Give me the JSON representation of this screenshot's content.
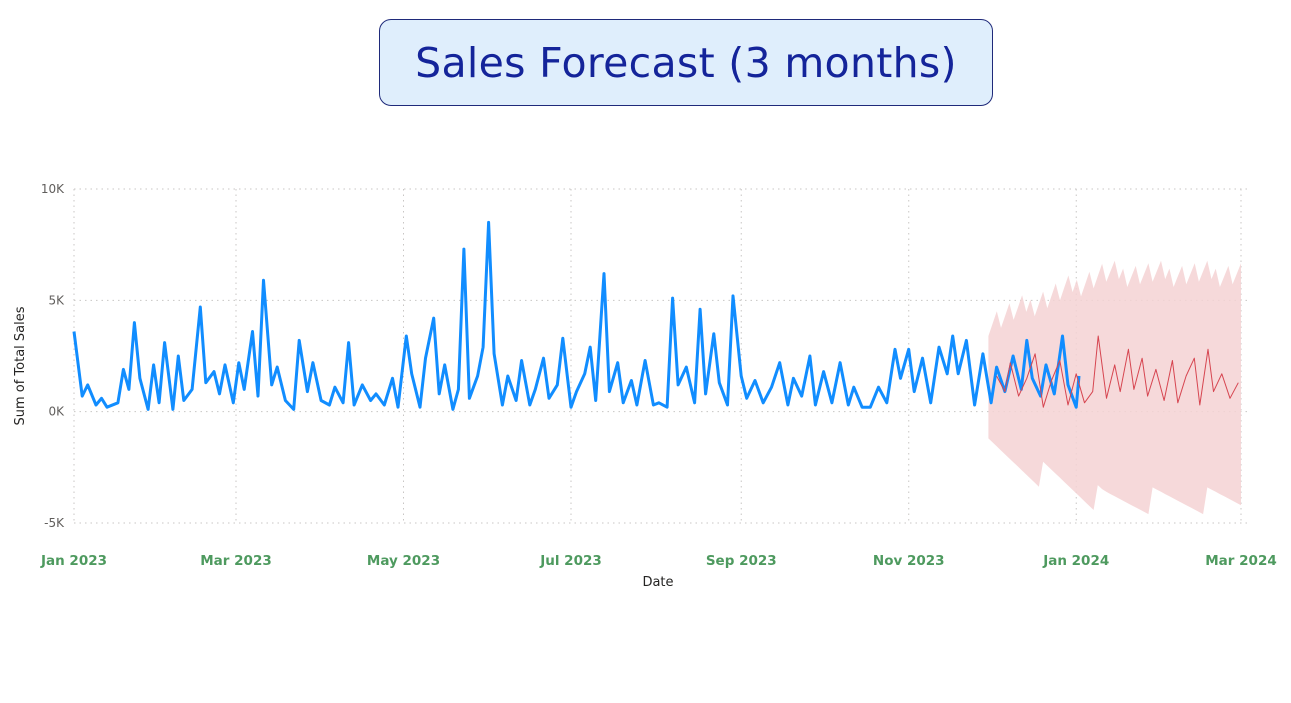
{
  "title": "Sales Forecast (3 months)",
  "colors": {
    "actual": "#118dff",
    "forecast": "#d64550",
    "band": "#f5d2d4",
    "x_tick": "#4e9a5f",
    "grid": "#c8c6c4"
  },
  "chart_data": {
    "type": "line",
    "xlabel": "Date",
    "ylabel": "Sum of Total Sales",
    "ylim": [
      -5000,
      10000
    ],
    "xlim": [
      "2023-01-01",
      "2024-03-01"
    ],
    "y_ticks": [
      {
        "value": 10000,
        "label": "10K"
      },
      {
        "value": 5000,
        "label": "5K"
      },
      {
        "value": 0,
        "label": "0K"
      },
      {
        "value": -5000,
        "label": "-5K"
      }
    ],
    "x_ticks": [
      {
        "date": "2023-01-01",
        "label": "Jan 2023"
      },
      {
        "date": "2023-03-01",
        "label": "Mar 2023"
      },
      {
        "date": "2023-05-01",
        "label": "May 2023"
      },
      {
        "date": "2023-07-01",
        "label": "Jul 2023"
      },
      {
        "date": "2023-09-01",
        "label": "Sep 2023"
      },
      {
        "date": "2023-11-01",
        "label": "Nov 2023"
      },
      {
        "date": "2024-01-01",
        "label": "Jan 2024"
      },
      {
        "date": "2024-03-01",
        "label": "Mar 2024"
      }
    ],
    "grid": true,
    "series": [
      {
        "kind": "actual",
        "points": [
          [
            "2023-01-01",
            3600
          ],
          [
            "2023-01-04",
            700
          ],
          [
            "2023-01-06",
            1200
          ],
          [
            "2023-01-09",
            300
          ],
          [
            "2023-01-11",
            600
          ],
          [
            "2023-01-13",
            200
          ],
          [
            "2023-01-17",
            400
          ],
          [
            "2023-01-19",
            1900
          ],
          [
            "2023-01-21",
            1000
          ],
          [
            "2023-01-23",
            4000
          ],
          [
            "2023-01-25",
            1500
          ],
          [
            "2023-01-28",
            100
          ],
          [
            "2023-01-30",
            2100
          ],
          [
            "2023-02-01",
            400
          ],
          [
            "2023-02-03",
            3100
          ],
          [
            "2023-02-06",
            100
          ],
          [
            "2023-02-08",
            2500
          ],
          [
            "2023-02-10",
            500
          ],
          [
            "2023-02-13",
            1000
          ],
          [
            "2023-02-16",
            4700
          ],
          [
            "2023-02-18",
            1300
          ],
          [
            "2023-02-21",
            1800
          ],
          [
            "2023-02-23",
            800
          ],
          [
            "2023-02-25",
            2100
          ],
          [
            "2023-02-28",
            400
          ],
          [
            "2023-03-02",
            2200
          ],
          [
            "2023-03-04",
            1000
          ],
          [
            "2023-03-07",
            3600
          ],
          [
            "2023-03-09",
            700
          ],
          [
            "2023-03-11",
            5900
          ],
          [
            "2023-03-14",
            1200
          ],
          [
            "2023-03-16",
            2000
          ],
          [
            "2023-03-19",
            500
          ],
          [
            "2023-03-22",
            100
          ],
          [
            "2023-03-24",
            3200
          ],
          [
            "2023-03-27",
            900
          ],
          [
            "2023-03-29",
            2200
          ],
          [
            "2023-04-01",
            500
          ],
          [
            "2023-04-04",
            300
          ],
          [
            "2023-04-06",
            1100
          ],
          [
            "2023-04-09",
            400
          ],
          [
            "2023-04-11",
            3100
          ],
          [
            "2023-04-13",
            300
          ],
          [
            "2023-04-16",
            1200
          ],
          [
            "2023-04-19",
            500
          ],
          [
            "2023-04-21",
            800
          ],
          [
            "2023-04-24",
            300
          ],
          [
            "2023-04-27",
            1500
          ],
          [
            "2023-04-29",
            200
          ],
          [
            "2023-05-02",
            3400
          ],
          [
            "2023-05-04",
            1700
          ],
          [
            "2023-05-07",
            200
          ],
          [
            "2023-05-09",
            2400
          ],
          [
            "2023-05-12",
            4200
          ],
          [
            "2023-05-14",
            800
          ],
          [
            "2023-05-16",
            2100
          ],
          [
            "2023-05-19",
            100
          ],
          [
            "2023-05-21",
            1000
          ],
          [
            "2023-05-23",
            7300
          ],
          [
            "2023-05-25",
            600
          ],
          [
            "2023-05-28",
            1600
          ],
          [
            "2023-05-30",
            2900
          ],
          [
            "2023-06-01",
            8500
          ],
          [
            "2023-06-03",
            2600
          ],
          [
            "2023-06-06",
            300
          ],
          [
            "2023-06-08",
            1600
          ],
          [
            "2023-06-11",
            500
          ],
          [
            "2023-06-13",
            2300
          ],
          [
            "2023-06-16",
            300
          ],
          [
            "2023-06-18",
            1000
          ],
          [
            "2023-06-21",
            2400
          ],
          [
            "2023-06-23",
            600
          ],
          [
            "2023-06-26",
            1200
          ],
          [
            "2023-06-28",
            3300
          ],
          [
            "2023-07-01",
            200
          ],
          [
            "2023-07-03",
            900
          ],
          [
            "2023-07-06",
            1700
          ],
          [
            "2023-07-08",
            2900
          ],
          [
            "2023-07-10",
            500
          ],
          [
            "2023-07-13",
            6200
          ],
          [
            "2023-07-15",
            900
          ],
          [
            "2023-07-18",
            2200
          ],
          [
            "2023-07-20",
            400
          ],
          [
            "2023-07-23",
            1400
          ],
          [
            "2023-07-25",
            300
          ],
          [
            "2023-07-28",
            2300
          ],
          [
            "2023-07-31",
            300
          ],
          [
            "2023-08-02",
            400
          ],
          [
            "2023-08-05",
            200
          ],
          [
            "2023-08-07",
            5100
          ],
          [
            "2023-08-09",
            1200
          ],
          [
            "2023-08-12",
            2000
          ],
          [
            "2023-08-15",
            400
          ],
          [
            "2023-08-17",
            4600
          ],
          [
            "2023-08-19",
            800
          ],
          [
            "2023-08-22",
            3500
          ],
          [
            "2023-08-24",
            1300
          ],
          [
            "2023-08-27",
            300
          ],
          [
            "2023-08-29",
            5200
          ],
          [
            "2023-09-01",
            1600
          ],
          [
            "2023-09-03",
            600
          ],
          [
            "2023-09-06",
            1400
          ],
          [
            "2023-09-09",
            400
          ],
          [
            "2023-09-12",
            1100
          ],
          [
            "2023-09-15",
            2200
          ],
          [
            "2023-09-18",
            300
          ],
          [
            "2023-09-20",
            1500
          ],
          [
            "2023-09-23",
            700
          ],
          [
            "2023-09-26",
            2500
          ],
          [
            "2023-09-28",
            300
          ],
          [
            "2023-10-01",
            1800
          ],
          [
            "2023-10-04",
            400
          ],
          [
            "2023-10-07",
            2200
          ],
          [
            "2023-10-10",
            300
          ],
          [
            "2023-10-12",
            1100
          ],
          [
            "2023-10-15",
            200
          ],
          [
            "2023-10-18",
            200
          ],
          [
            "2023-10-21",
            1100
          ],
          [
            "2023-10-24",
            400
          ],
          [
            "2023-10-27",
            2800
          ],
          [
            "2023-10-29",
            1500
          ],
          [
            "2023-11-01",
            2800
          ],
          [
            "2023-11-03",
            900
          ],
          [
            "2023-11-06",
            2400
          ],
          [
            "2023-11-09",
            400
          ],
          [
            "2023-11-12",
            2900
          ],
          [
            "2023-11-15",
            1700
          ],
          [
            "2023-11-17",
            3400
          ],
          [
            "2023-11-19",
            1700
          ],
          [
            "2023-11-22",
            3200
          ],
          [
            "2023-11-25",
            300
          ],
          [
            "2023-11-28",
            2600
          ],
          [
            "2023-12-01",
            400
          ],
          [
            "2023-12-03",
            2000
          ],
          [
            "2023-12-06",
            900
          ],
          [
            "2023-12-09",
            2500
          ],
          [
            "2023-12-12",
            1000
          ],
          [
            "2023-12-14",
            3200
          ],
          [
            "2023-12-16",
            1500
          ],
          [
            "2023-12-19",
            700
          ],
          [
            "2023-12-21",
            2100
          ],
          [
            "2023-12-24",
            800
          ],
          [
            "2023-12-27",
            3400
          ],
          [
            "2023-12-29",
            1200
          ],
          [
            "2024-01-01",
            200
          ],
          [
            "2024-01-02",
            1600
          ]
        ]
      },
      {
        "kind": "forecast",
        "points": [
          [
            "2023-12-03",
            1600
          ],
          [
            "2023-12-06",
            900
          ],
          [
            "2023-12-08",
            2200
          ],
          [
            "2023-12-11",
            700
          ],
          [
            "2023-12-14",
            1500
          ],
          [
            "2023-12-17",
            2600
          ],
          [
            "2023-12-20",
            200
          ],
          [
            "2023-12-23",
            1400
          ],
          [
            "2023-12-26",
            2300
          ],
          [
            "2023-12-29",
            300
          ],
          [
            "2024-01-01",
            1700
          ],
          [
            "2024-01-04",
            400
          ],
          [
            "2024-01-07",
            900
          ],
          [
            "2024-01-09",
            3400
          ],
          [
            "2024-01-12",
            600
          ],
          [
            "2024-01-15",
            2100
          ],
          [
            "2024-01-17",
            900
          ],
          [
            "2024-01-20",
            2800
          ],
          [
            "2024-01-22",
            1000
          ],
          [
            "2024-01-25",
            2400
          ],
          [
            "2024-01-27",
            700
          ],
          [
            "2024-01-30",
            1900
          ],
          [
            "2024-02-02",
            500
          ],
          [
            "2024-02-05",
            2300
          ],
          [
            "2024-02-07",
            400
          ],
          [
            "2024-02-10",
            1600
          ],
          [
            "2024-02-13",
            2400
          ],
          [
            "2024-02-15",
            300
          ],
          [
            "2024-02-18",
            2800
          ],
          [
            "2024-02-20",
            900
          ],
          [
            "2024-02-23",
            1700
          ],
          [
            "2024-02-26",
            600
          ],
          [
            "2024-02-29",
            1300
          ]
        ]
      }
    ]
  }
}
